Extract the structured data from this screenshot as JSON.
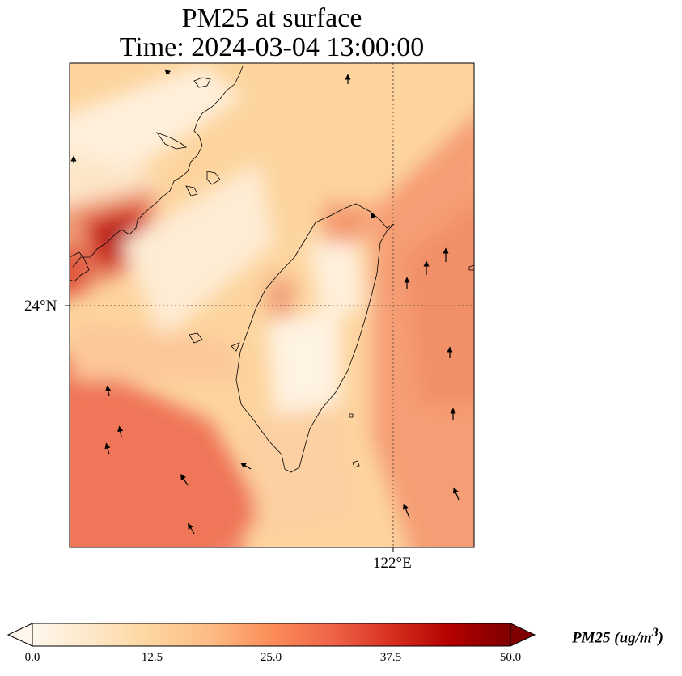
{
  "title": {
    "line1": "PM25 at surface",
    "line2": "Time: 2024-03-04 13:00:00"
  },
  "map": {
    "region": "Taiwan Strait",
    "projection": "PlateCarree",
    "graticule": {
      "lat_label": "24°N",
      "lon_label": "122°E",
      "lat": 24,
      "lon": 122,
      "style": "dotted"
    },
    "coastline_color": "#000000",
    "field": "PM25",
    "wind_vectors": "black arrows"
  },
  "chart_data": {
    "type": "heatmap",
    "variable": "PM25",
    "colormap": "OrRd",
    "vmin": 0.0,
    "vmax": 50.0,
    "extend": "both",
    "regions": [
      {
        "name": "Fujian coast hotspot",
        "approx_value": 40
      },
      {
        "name": "Southern Taiwan Strait",
        "approx_value": 27
      },
      {
        "name": "East of Taiwan",
        "approx_value": 22
      },
      {
        "name": "Northern Taiwan",
        "approx_value": 24
      },
      {
        "name": "Central Taiwan interior",
        "approx_value": 7
      },
      {
        "name": "Northern strait",
        "approx_value": 12
      }
    ]
  },
  "colorbar": {
    "label_main": "PM25 (ug/m",
    "label_sup": "3",
    "label_end": ")",
    "ticks": [
      "0.0",
      "12.5",
      "25.0",
      "37.5",
      "50.0"
    ],
    "tick_values": [
      0,
      12.5,
      25,
      37.5,
      50
    ],
    "stops": [
      "#fff7ec",
      "#fee8c8",
      "#fdd49e",
      "#fdbb84",
      "#fc8d59",
      "#ef6548",
      "#d7301f",
      "#b30000",
      "#7f0000"
    ]
  }
}
